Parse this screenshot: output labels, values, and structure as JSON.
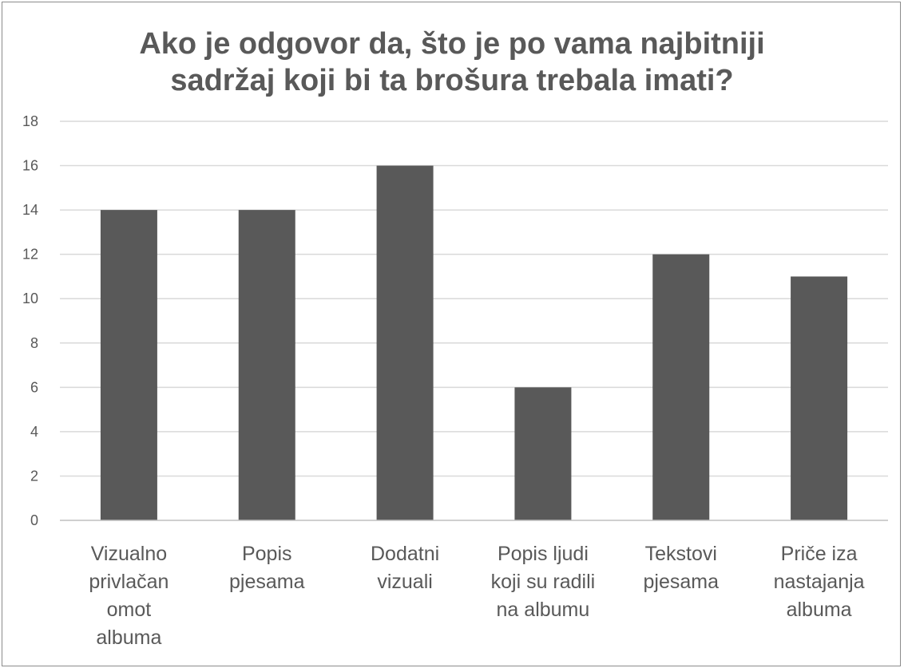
{
  "chart_data": {
    "type": "bar",
    "title": [
      "Ako je odgovor da, što je po vama najbitniji",
      "sadržaj koji bi ta brošura trebala imati?"
    ],
    "categories": [
      [
        "Vizualno",
        "privlačan",
        "omot",
        "albuma"
      ],
      [
        "Popis",
        "pjesama"
      ],
      [
        "Dodatni",
        "vizuali"
      ],
      [
        "Popis ljudi",
        "koji su radili",
        "na albumu"
      ],
      [
        "Tekstovi",
        "pjesama"
      ],
      [
        "Priče iza",
        "nastajanja",
        "albuma"
      ]
    ],
    "values": [
      14,
      14,
      16,
      6,
      12,
      11
    ],
    "xlabel": "",
    "ylabel": "",
    "ylim": [
      0,
      18
    ],
    "yticks": [
      0,
      2,
      4,
      6,
      8,
      10,
      12,
      14,
      16,
      18
    ],
    "grid": true,
    "legend": "none",
    "colors": {
      "bar": "#595959",
      "grid": "#d9d9d9",
      "text": "#595959",
      "axis": "#bfbfbf"
    }
  }
}
